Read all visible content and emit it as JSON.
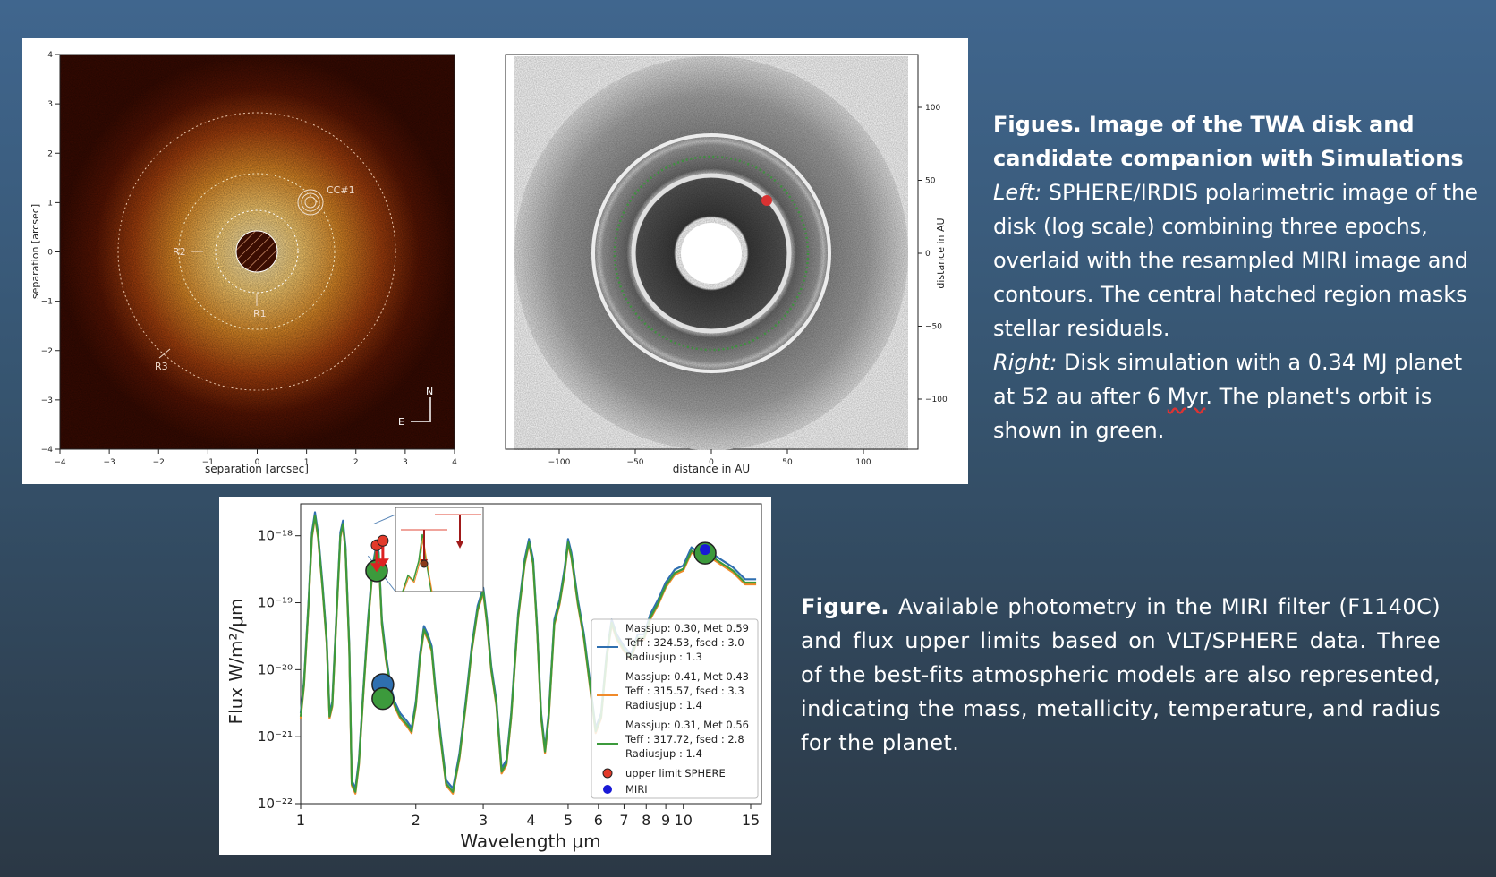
{
  "left_image": {
    "xlabel": "separation [arcsec]",
    "ylabel": "separation [arcsec]",
    "x_ticks": [
      "−4",
      "−3",
      "−2",
      "−1",
      "0",
      "1",
      "2",
      "3",
      "4"
    ],
    "y_ticks": [
      "4",
      "3",
      "2",
      "1",
      "0",
      "−1",
      "−2",
      "−3",
      "−4"
    ],
    "labels": {
      "cc": "CC#1",
      "r1": "R1",
      "r2": "R2",
      "r3": "R3",
      "north": "N",
      "east": "E"
    }
  },
  "right_image": {
    "xlabel": "distance in AU",
    "ylabel": "distance in AU",
    "x_ticks": [
      "−100",
      "−50",
      "0",
      "50",
      "100"
    ],
    "y_ticks": [
      "100",
      "50",
      "0",
      "−50",
      "−100"
    ]
  },
  "chart_data": {
    "type": "line",
    "xlabel": "Wavelength μm",
    "ylabel": "Flux W/m²/μm",
    "xscale": "log",
    "yscale": "log",
    "xlim": [
      1,
      16
    ],
    "ylim": [
      1e-22,
      3e-18
    ],
    "x_tick_labels": [
      "1",
      "2",
      "3",
      "4",
      "5",
      "6",
      "7",
      "8",
      "9",
      "10",
      "15"
    ],
    "y_tick_labels": [
      "10⁻¹⁸",
      "10⁻¹⁹",
      "10⁻²⁰",
      "10⁻²¹",
      "10⁻²²"
    ],
    "series": [
      {
        "legend": [
          "Massjup: 0.30, Met 0.59",
          "Teff : 324.53, fsed : 3.0",
          "Radiusjup : 1.3"
        ],
        "color": "#2f6fb0"
      },
      {
        "legend": [
          "Massjup: 0.41, Met 0.43",
          "Teff : 315.57, fsed : 3.3",
          "Radiusjup : 1.4"
        ],
        "color": "#f08a2a"
      },
      {
        "legend": [
          "Massjup: 0.31, Met 0.56",
          "Teff : 317.72, fsed : 2.8",
          "Radiusjup : 1.4"
        ],
        "color": "#3c9a3c"
      }
    ],
    "model_profile": [
      [
        1.0,
        2e-21
      ],
      [
        1.02,
        6e-21
      ],
      [
        1.05,
        1.1e-19
      ],
      [
        1.07,
        1e-18
      ],
      [
        1.09,
        2e-18
      ],
      [
        1.11,
        1e-18
      ],
      [
        1.14,
        1.8e-19
      ],
      [
        1.17,
        2.5e-20
      ],
      [
        1.19,
        2e-21
      ],
      [
        1.21,
        3e-21
      ],
      [
        1.24,
        6e-20
      ],
      [
        1.27,
        1e-18
      ],
      [
        1.29,
        1.5e-18
      ],
      [
        1.31,
        6e-19
      ],
      [
        1.34,
        2e-20
      ],
      [
        1.36,
        2e-22
      ],
      [
        1.39,
        1.5e-22
      ],
      [
        1.42,
        4e-22
      ],
      [
        1.46,
        5e-21
      ],
      [
        1.5,
        5e-20
      ],
      [
        1.54,
        3e-19
      ],
      [
        1.58,
        7e-19
      ],
      [
        1.6,
        5e-19
      ],
      [
        1.63,
        5e-20
      ],
      [
        1.67,
        1.5e-20
      ],
      [
        1.72,
        5e-21
      ],
      [
        1.76,
        3e-21
      ],
      [
        1.82,
        2e-21
      ],
      [
        1.9,
        1.5e-21
      ],
      [
        1.95,
        1.2e-21
      ],
      [
        2.0,
        3e-21
      ],
      [
        2.05,
        1.5e-20
      ],
      [
        2.1,
        4e-20
      ],
      [
        2.15,
        3e-20
      ],
      [
        2.2,
        2e-20
      ],
      [
        2.25,
        5e-21
      ],
      [
        2.32,
        1e-21
      ],
      [
        2.4,
        2e-22
      ],
      [
        2.5,
        1.5e-22
      ],
      [
        2.6,
        5e-22
      ],
      [
        2.7,
        3e-21
      ],
      [
        2.8,
        2e-20
      ],
      [
        2.9,
        8e-20
      ],
      [
        3.0,
        1.5e-19
      ],
      [
        3.07,
        5e-20
      ],
      [
        3.15,
        1e-20
      ],
      [
        3.25,
        3e-21
      ],
      [
        3.35,
        3e-22
      ],
      [
        3.45,
        4e-22
      ],
      [
        3.55,
        2e-21
      ],
      [
        3.7,
        6e-20
      ],
      [
        3.85,
        4e-19
      ],
      [
        3.95,
        8e-19
      ],
      [
        4.05,
        4e-19
      ],
      [
        4.15,
        4e-20
      ],
      [
        4.25,
        2e-21
      ],
      [
        4.35,
        6e-22
      ],
      [
        4.45,
        2e-21
      ],
      [
        4.6,
        5e-20
      ],
      [
        4.75,
        1e-19
      ],
      [
        4.9,
        3e-19
      ],
      [
        5.0,
        8e-19
      ],
      [
        5.1,
        5e-19
      ],
      [
        5.3,
        1e-19
      ],
      [
        5.5,
        3e-20
      ],
      [
        5.7,
        6e-21
      ],
      [
        5.9,
        1.2e-21
      ],
      [
        6.1,
        2e-21
      ],
      [
        6.3,
        1.5e-20
      ],
      [
        6.5,
        5e-20
      ],
      [
        6.7,
        3e-20
      ],
      [
        7.0,
        2e-20
      ],
      [
        7.3,
        1.5e-20
      ],
      [
        7.6,
        3e-20
      ],
      [
        7.9,
        3e-20
      ],
      [
        8.2,
        6e-20
      ],
      [
        8.6,
        1e-19
      ],
      [
        9.0,
        1.8e-19
      ],
      [
        9.5,
        2.8e-19
      ],
      [
        10.0,
        3.2e-19
      ],
      [
        10.5,
        6e-19
      ],
      [
        11.0,
        5e-19
      ],
      [
        11.4,
        6e-19
      ],
      [
        11.8,
        5e-19
      ],
      [
        12.5,
        4e-19
      ],
      [
        13.5,
        3e-19
      ],
      [
        14.5,
        2e-19
      ],
      [
        15.5,
        2e-19
      ]
    ],
    "miri_point": {
      "x": 11.4,
      "y": 5.5e-19,
      "legend": "MIRI"
    },
    "sphere_upper_limits": {
      "x": [
        1.58,
        1.64
      ],
      "y": [
        6e-19,
        7e-19
      ],
      "legend": "upper limit SPHERE"
    },
    "model_markers": [
      {
        "x": 1.58,
        "y": 3e-19,
        "color": "#3c9a3c"
      },
      {
        "x": 1.64,
        "y": 6e-21,
        "color": "#2f6fb0"
      },
      {
        "x": 1.64,
        "y": 3.7e-21,
        "color": "#3c9a3c"
      }
    ]
  },
  "captions": {
    "top": {
      "title": "Figues. Image of the TWA disk and candidate companion with Simulations",
      "left_lead": "Left:",
      "left_text": "SPHERE/IRDIS polarimetric image of the disk (log scale) combining three epochs, overlaid with the resampled MIRI image and contours. The central hatched region masks stellar residuals.",
      "right_lead": "Right:",
      "right_text_a": "Disk simulation with a 0.34 MJ planet at 52 au after 6",
      "right_text_squiggle": "Myr",
      "right_text_b": ". The planet's orbit is shown in green."
    },
    "bottom": {
      "lead": "Figure.",
      "text": "Available photometry in the MIRI filter (F1140C) and flux upper limits based on VLT/SPHERE data. Three of the best-fits atmospheric models are also represented, indicating the mass, metallicity, temperature, and radius for the planet."
    }
  }
}
